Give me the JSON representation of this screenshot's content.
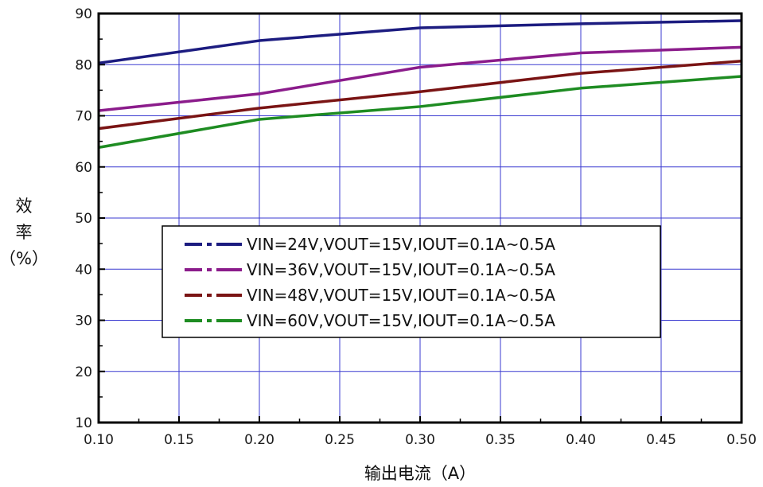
{
  "chart_data": {
    "type": "line",
    "xlabel": "输出电流（A）",
    "ylabel_chars": [
      "效",
      "率",
      "（%）"
    ],
    "xlim": [
      0.1,
      0.5
    ],
    "ylim": [
      10,
      90
    ],
    "x_ticks": [
      "0.10",
      "0.15",
      "0.20",
      "0.25",
      "0.30",
      "0.35",
      "0.40",
      "0.45",
      "0.50"
    ],
    "y_ticks": [
      "10",
      "20",
      "30",
      "40",
      "50",
      "60",
      "70",
      "80",
      "90"
    ],
    "grid": true,
    "legend_position": "center",
    "x": [
      0.1,
      0.2,
      0.3,
      0.4,
      0.5
    ],
    "series": [
      {
        "name": "VIN=24V,VOUT=15V,IOUT=0.1A~0.5A",
        "color": "#1c1c80",
        "values": [
          80.3,
          84.7,
          87.2,
          88.0,
          88.6
        ]
      },
      {
        "name": "VIN=36V,VOUT=15V,IOUT=0.1A~0.5A",
        "color": "#8b1c8b",
        "values": [
          71.0,
          74.3,
          79.5,
          82.3,
          83.4
        ]
      },
      {
        "name": "VIN=48V,VOUT=15V,IOUT=0.1A~0.5A",
        "color": "#7a1414",
        "values": [
          67.5,
          71.5,
          74.7,
          78.3,
          80.7
        ]
      },
      {
        "name": "VIN=60V,VOUT=15V,IOUT=0.1A~0.5A",
        "color": "#1e8c22",
        "values": [
          63.8,
          69.3,
          71.8,
          75.4,
          77.7
        ]
      }
    ]
  }
}
